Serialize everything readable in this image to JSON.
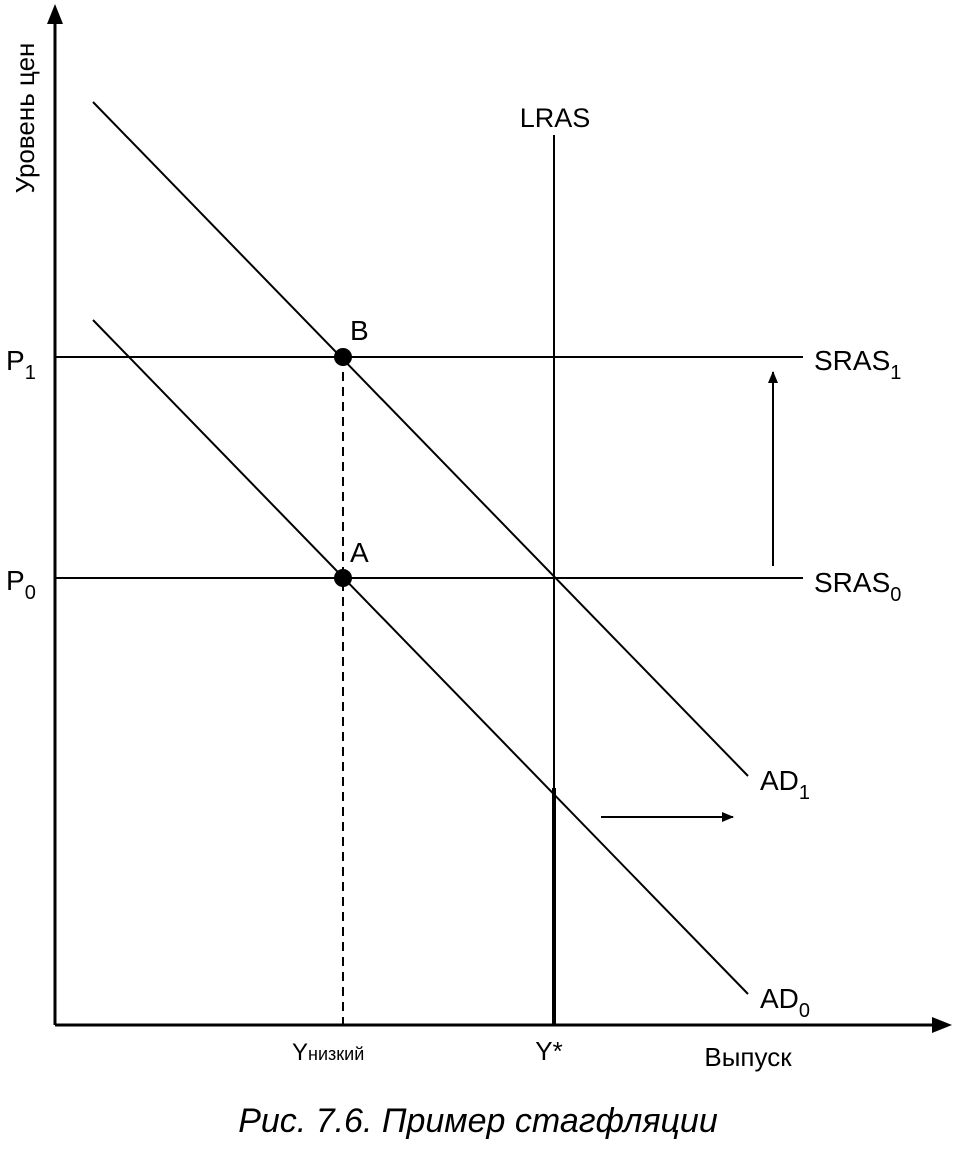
{
  "diagram": {
    "y_axis_label": "Уровень цен",
    "x_axis_label": "Выпуск",
    "lras_label": "LRAS",
    "sras": [
      {
        "base": "SRAS",
        "sub": "1"
      },
      {
        "base": "SRAS",
        "sub": "0"
      }
    ],
    "ad": [
      {
        "base": "AD",
        "sub": "1"
      },
      {
        "base": "AD",
        "sub": "0"
      }
    ],
    "price_levels": [
      {
        "base": "P",
        "sub": "1"
      },
      {
        "base": "P",
        "sub": "0"
      }
    ],
    "points": [
      "B",
      "A"
    ],
    "x_ticks": {
      "low": {
        "base": "Y",
        "sub": "низкий"
      },
      "potential": "Y*"
    },
    "arrows": [
      "SRAS shift up",
      "AD shift right"
    ]
  },
  "caption": "Рис. 7.6. Пример стагфляции"
}
